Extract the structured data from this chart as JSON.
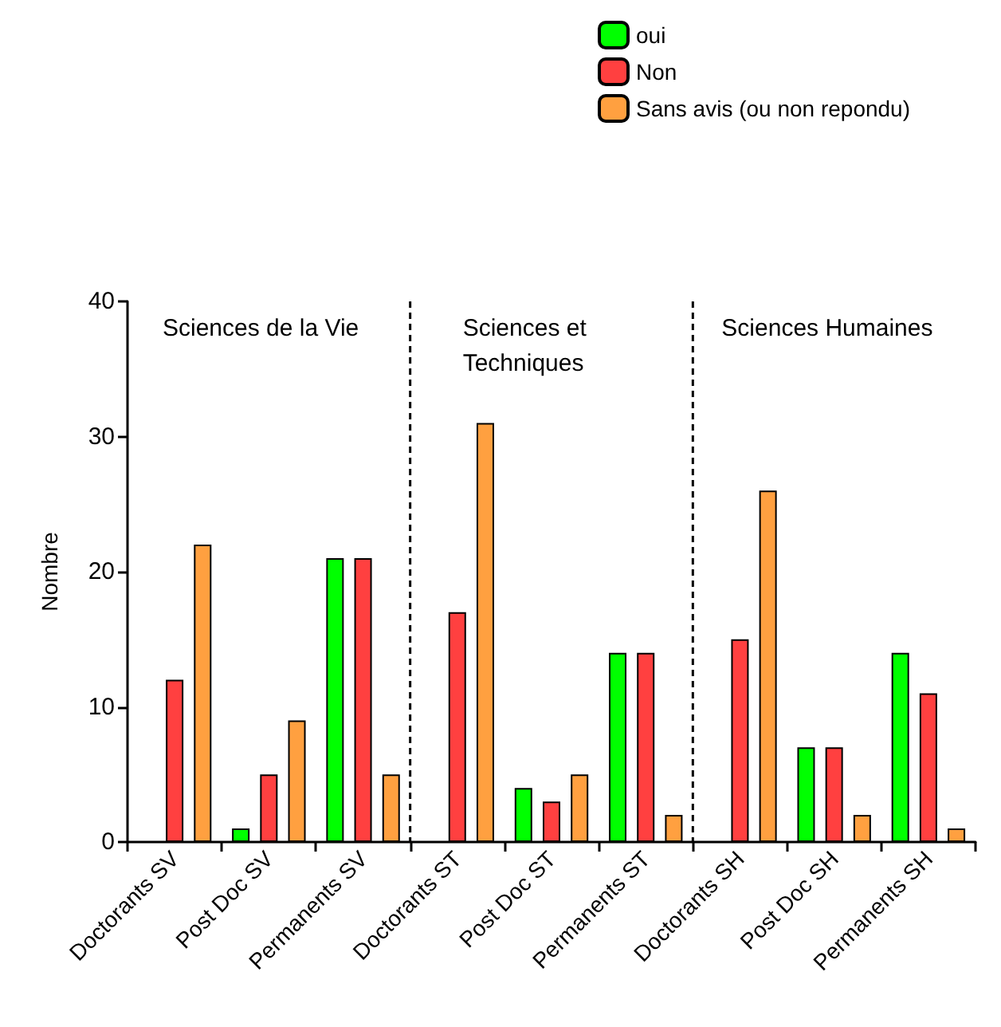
{
  "chart_data": {
    "type": "bar",
    "ylabel": "Nombre",
    "categories": [
      "Doctorants SV",
      "Post Doc SV",
      "Permanents SV",
      "Doctorants ST",
      "Post Doc ST",
      "Permanents ST",
      "Doctorants SH",
      "Post Doc SH",
      "Permanents SH"
    ],
    "series": [
      {
        "name": "oui",
        "color": "#00ff00",
        "values": [
          0,
          1,
          21,
          0,
          4,
          14,
          0,
          7,
          14
        ]
      },
      {
        "name": "Non",
        "color": "#ff4040",
        "values": [
          12,
          5,
          21,
          17,
          3,
          14,
          15,
          7,
          11
        ]
      },
      {
        "name": "Sans avis (ou non repondu)",
        "color": "#ffa040",
        "values": [
          22,
          9,
          5,
          31,
          5,
          2,
          26,
          2,
          1
        ]
      }
    ],
    "ylim": [
      0,
      40
    ],
    "yticks": [
      0,
      10,
      20,
      30,
      40
    ],
    "grid": false,
    "legend": "top right",
    "annotations": [
      "Sciences de la Vie",
      "Sciences et Techniques",
      "Sciences Humaines"
    ]
  }
}
